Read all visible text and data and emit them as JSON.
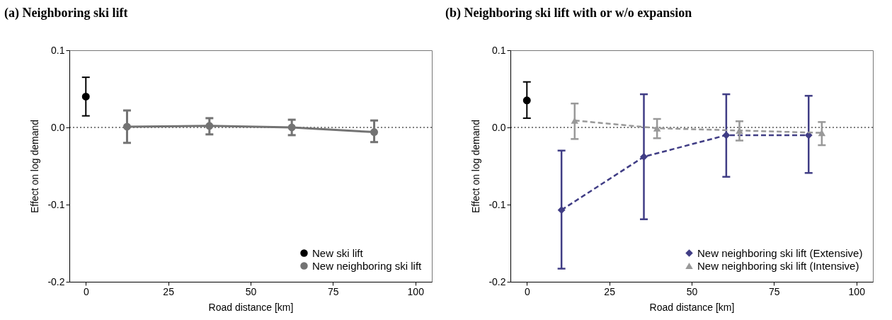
{
  "chart_data": [
    {
      "type": "line",
      "title": "(a) Neighboring ski lift",
      "xlabel": "Road distance [km]",
      "ylabel": "Effect on log demand",
      "xlim": [
        -5,
        105
      ],
      "xticks": [
        0,
        25,
        50,
        75,
        100
      ],
      "ylim": [
        -0.2,
        0.1
      ],
      "yticks": [
        {
          "value": 0.1,
          "label": "0.1"
        },
        {
          "value": 0,
          "label": "0.0"
        },
        {
          "value": -0.1,
          "label": "-0.1"
        },
        {
          "value": -0.2,
          "label": "-0.2"
        }
      ],
      "grid": false,
      "legend": "bottom right",
      "ref_lines": [
        {
          "axis": "y",
          "value": 0,
          "color": "#000000",
          "line_style": "dotted"
        }
      ],
      "series": [
        {
          "name": "New ski lift",
          "type": "scatter",
          "marker": "circle",
          "color": "#000000",
          "x": [
            0
          ],
          "values": [
            0.04
          ],
          "errors": [
            [
              0.015,
              0.065
            ]
          ]
        },
        {
          "name": "New neighboring ski lift",
          "type": "line",
          "marker": "circle",
          "line_style": "solid",
          "color": "#737373",
          "x": [
            12.5,
            37.5,
            62.5,
            87.5
          ],
          "values": [
            0.001,
            0.002,
            0.0,
            -0.006
          ],
          "errors": [
            [
              -0.02,
              0.022
            ],
            [
              -0.009,
              0.012
            ],
            [
              -0.01,
              0.01
            ],
            [
              -0.019,
              0.009
            ]
          ]
        }
      ]
    },
    {
      "type": "line",
      "title": "(b) Neighboring ski lift with or w/o expansion",
      "xlabel": "Road distance [km]",
      "ylabel": "Effect on log demand",
      "xlim": [
        -5,
        105
      ],
      "xticks": [
        0,
        25,
        50,
        75,
        100
      ],
      "ylim": [
        -0.2,
        0.1
      ],
      "yticks": [
        {
          "value": 0.1,
          "label": "0.1"
        },
        {
          "value": 0,
          "label": "0.0"
        },
        {
          "value": -0.1,
          "label": "-0.1"
        },
        {
          "value": -0.2,
          "label": "-0.2"
        }
      ],
      "grid": false,
      "legend": "bottom right",
      "ref_lines": [
        {
          "axis": "y",
          "value": 0,
          "color": "#000000",
          "line_style": "dotted"
        }
      ],
      "series": [
        {
          "type": "scatter",
          "marker": "circle",
          "color": "#000000",
          "x": [
            0
          ],
          "values": [
            0.035
          ],
          "errors": [
            [
              0.012,
              0.059
            ]
          ]
        },
        {
          "name": "New neighboring ski lift (Extensive)",
          "type": "line",
          "marker": "diamond",
          "line_style": "dashed",
          "color": "#403d85",
          "x": [
            10.5,
            35.5,
            60.5,
            85.5
          ],
          "values": [
            -0.107,
            -0.038,
            -0.01,
            -0.01
          ],
          "errors": [
            [
              -0.183,
              -0.03
            ],
            [
              -0.119,
              0.043
            ],
            [
              -0.064,
              0.043
            ],
            [
              -0.059,
              0.041
            ]
          ]
        },
        {
          "name": "New neighboring ski lift (Intensive)",
          "type": "line",
          "marker": "triangle",
          "line_style": "dashed",
          "color": "#999999",
          "x": [
            14.5,
            39.5,
            64.5,
            89.5
          ],
          "values": [
            0.009,
            -0.001,
            -0.004,
            -0.007
          ],
          "errors": [
            [
              -0.015,
              0.031
            ],
            [
              -0.014,
              0.011
            ],
            [
              -0.017,
              0.008
            ],
            [
              -0.023,
              0.007
            ]
          ]
        }
      ]
    }
  ]
}
